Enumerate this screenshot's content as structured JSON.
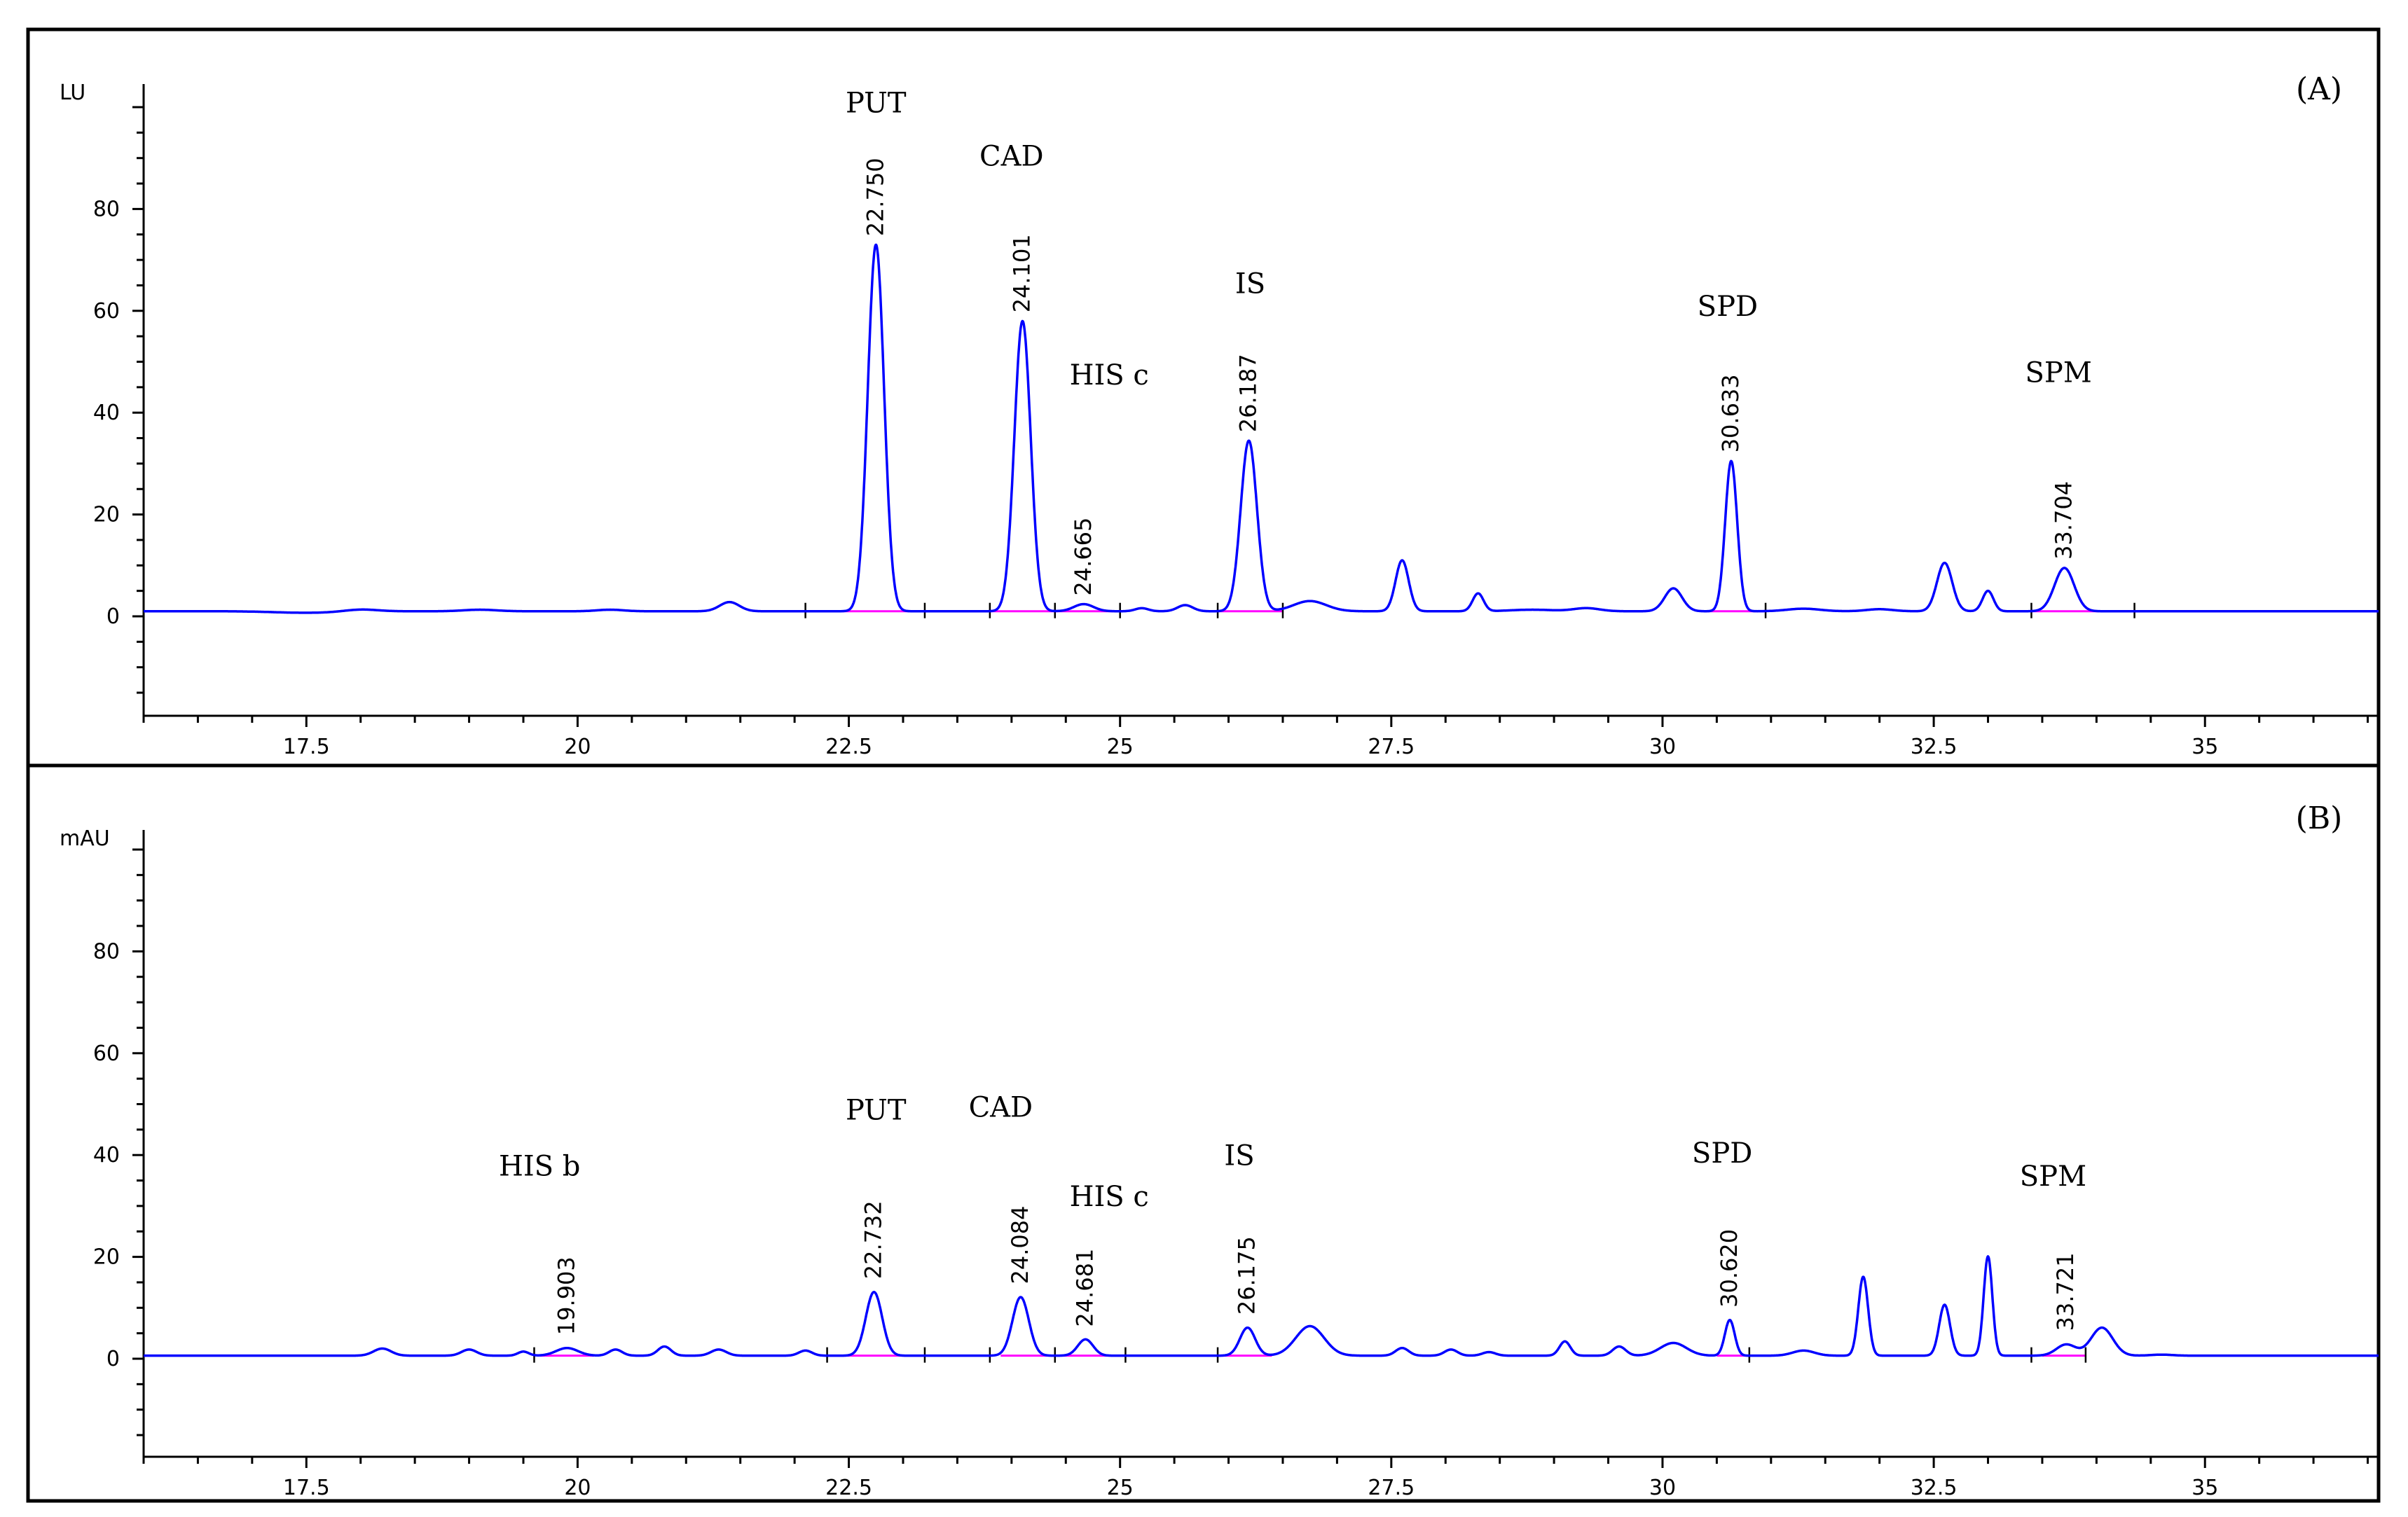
{
  "chart_data": [
    {
      "type": "line",
      "panel_label": "(A)",
      "ylabel": "LU",
      "xlim": [
        16,
        36.6
      ],
      "ylim": [
        -20,
        102
      ],
      "xticks": [
        17.5,
        20,
        22.5,
        25,
        27.5,
        30,
        32.5,
        35
      ],
      "xtick_labels": [
        "17.5",
        "20",
        "22.5",
        "25",
        "27.5",
        "30",
        "32.5",
        "35"
      ],
      "yticks": [
        0,
        20,
        40,
        60,
        80
      ],
      "ytick_labels": [
        "0",
        "20",
        "40",
        "60",
        "80"
      ],
      "baseline": 1.0,
      "peaks": [
        {
          "x": 17.5,
          "h": -0.3,
          "w": 0.3
        },
        {
          "x": 18.0,
          "h": 0.4,
          "w": 0.15
        },
        {
          "x": 19.1,
          "h": 0.3,
          "w": 0.15
        },
        {
          "x": 20.3,
          "h": 0.3,
          "w": 0.12
        },
        {
          "x": 21.4,
          "h": 1.8,
          "w": 0.09
        },
        {
          "x": 22.75,
          "h": 72,
          "w": 0.075
        },
        {
          "x": 24.101,
          "h": 57,
          "w": 0.075
        },
        {
          "x": 24.665,
          "h": 1.4,
          "w": 0.09
        },
        {
          "x": 25.2,
          "h": 0.6,
          "w": 0.06
        },
        {
          "x": 25.6,
          "h": 1.2,
          "w": 0.07
        },
        {
          "x": 26.187,
          "h": 33.5,
          "w": 0.075
        },
        {
          "x": 26.75,
          "h": 2.0,
          "w": 0.15
        },
        {
          "x": 27.6,
          "h": 10,
          "w": 0.06
        },
        {
          "x": 28.3,
          "h": 3.5,
          "w": 0.05
        },
        {
          "x": 28.8,
          "h": 0.3,
          "w": 0.2
        },
        {
          "x": 29.3,
          "h": 0.6,
          "w": 0.12
        },
        {
          "x": 30.1,
          "h": 4.5,
          "w": 0.08
        },
        {
          "x": 30.633,
          "h": 29.5,
          "w": 0.055
        },
        {
          "x": 31.3,
          "h": 0.5,
          "w": 0.15
        },
        {
          "x": 32.0,
          "h": 0.4,
          "w": 0.12
        },
        {
          "x": 32.6,
          "h": 9.5,
          "w": 0.07
        },
        {
          "x": 33.0,
          "h": 4,
          "w": 0.05
        },
        {
          "x": 33.704,
          "h": 8.5,
          "w": 0.09
        }
      ],
      "peak_labels": [
        {
          "x": 22.75,
          "y": 73,
          "text": "22.750"
        },
        {
          "x": 24.101,
          "y": 58,
          "text": "24.101"
        },
        {
          "x": 24.665,
          "y": 2.4,
          "text": "24.665"
        },
        {
          "x": 26.187,
          "y": 34.5,
          "text": "26.187"
        },
        {
          "x": 30.633,
          "y": 30.5,
          "text": "30.633"
        },
        {
          "x": 33.704,
          "y": 9.5,
          "text": "33.704"
        }
      ],
      "compound_labels": [
        {
          "x": 22.75,
          "y": 99,
          "text": "PUT"
        },
        {
          "x": 24.0,
          "y": 88.5,
          "text": "CAD"
        },
        {
          "x": 24.9,
          "y": 45.5,
          "text": "HIS c"
        },
        {
          "x": 26.2,
          "y": 63.5,
          "text": "IS"
        },
        {
          "x": 30.6,
          "y": 59,
          "text": "SPD"
        },
        {
          "x": 33.65,
          "y": 46,
          "text": "SPM"
        }
      ],
      "integration_segments": [
        [
          22.3,
          23.2
        ],
        [
          23.8,
          24.4
        ],
        [
          24.4,
          25.0
        ],
        [
          25.9,
          26.5
        ],
        [
          30.4,
          30.95
        ],
        [
          33.4,
          34.35
        ]
      ],
      "event_markers": [
        22.1,
        23.2,
        23.8,
        24.4,
        25.0,
        25.9,
        26.5,
        30.95,
        33.4,
        34.35
      ]
    },
    {
      "type": "line",
      "panel_label": "(B)",
      "ylabel": "mAU",
      "xlim": [
        16,
        36.6
      ],
      "ylim": [
        -20,
        102
      ],
      "xticks": [
        17.5,
        20,
        22.5,
        25,
        27.5,
        30,
        32.5,
        35
      ],
      "xtick_labels": [
        "17.5",
        "20",
        "22.5",
        "25",
        "27.5",
        "30",
        "32.5",
        "35"
      ],
      "yticks": [
        0,
        20,
        40,
        60,
        80
      ],
      "ytick_labels": [
        "0",
        "20",
        "40",
        "60",
        "80"
      ],
      "baseline": 0.6,
      "peaks": [
        {
          "x": 18.2,
          "h": 1.4,
          "w": 0.08
        },
        {
          "x": 19.0,
          "h": 1.2,
          "w": 0.07
        },
        {
          "x": 19.5,
          "h": 0.8,
          "w": 0.05
        },
        {
          "x": 19.903,
          "h": 1.5,
          "w": 0.1
        },
        {
          "x": 20.35,
          "h": 1.2,
          "w": 0.06
        },
        {
          "x": 20.8,
          "h": 1.8,
          "w": 0.06
        },
        {
          "x": 21.3,
          "h": 1.2,
          "w": 0.07
        },
        {
          "x": 22.1,
          "h": 1.0,
          "w": 0.06
        },
        {
          "x": 22.732,
          "h": 12.5,
          "w": 0.075
        },
        {
          "x": 24.084,
          "h": 11.5,
          "w": 0.075
        },
        {
          "x": 24.681,
          "h": 3.2,
          "w": 0.07
        },
        {
          "x": 26.175,
          "h": 5.5,
          "w": 0.07
        },
        {
          "x": 26.75,
          "h": 5.8,
          "w": 0.13
        },
        {
          "x": 27.6,
          "h": 1.5,
          "w": 0.06
        },
        {
          "x": 28.05,
          "h": 1.2,
          "w": 0.06
        },
        {
          "x": 28.4,
          "h": 0.7,
          "w": 0.06
        },
        {
          "x": 29.1,
          "h": 2.8,
          "w": 0.05
        },
        {
          "x": 29.6,
          "h": 1.8,
          "w": 0.06
        },
        {
          "x": 30.1,
          "h": 2.5,
          "w": 0.12
        },
        {
          "x": 30.62,
          "h": 7,
          "w": 0.045
        },
        {
          "x": 31.3,
          "h": 1.0,
          "w": 0.1
        },
        {
          "x": 31.85,
          "h": 15.5,
          "w": 0.045
        },
        {
          "x": 32.6,
          "h": 10,
          "w": 0.05
        },
        {
          "x": 33.0,
          "h": 19.5,
          "w": 0.04
        },
        {
          "x": 33.721,
          "h": 2.2,
          "w": 0.09
        },
        {
          "x": 34.05,
          "h": 5.5,
          "w": 0.1
        },
        {
          "x": 34.6,
          "h": 0.2,
          "w": 0.1
        }
      ],
      "peak_labels": [
        {
          "x": 19.903,
          "y": 3.0,
          "text": "19.903"
        },
        {
          "x": 22.732,
          "y": 14,
          "text": "22.732"
        },
        {
          "x": 24.084,
          "y": 13,
          "text": "24.084"
        },
        {
          "x": 24.681,
          "y": 4.6,
          "text": "24.681"
        },
        {
          "x": 26.175,
          "y": 7,
          "text": "26.175"
        },
        {
          "x": 30.62,
          "y": 8.4,
          "text": "30.620"
        },
        {
          "x": 33.721,
          "y": 3.8,
          "text": "33.721"
        }
      ],
      "compound_labels": [
        {
          "x": 19.65,
          "y": 36,
          "text": "HIS b"
        },
        {
          "x": 22.75,
          "y": 47,
          "text": "PUT"
        },
        {
          "x": 23.9,
          "y": 47.5,
          "text": "CAD"
        },
        {
          "x": 24.9,
          "y": 30,
          "text": "HIS c"
        },
        {
          "x": 26.1,
          "y": 38,
          "text": "IS"
        },
        {
          "x": 30.55,
          "y": 38.5,
          "text": "SPD"
        },
        {
          "x": 33.6,
          "y": 34,
          "text": "SPM"
        }
      ],
      "integration_segments": [
        [
          19.65,
          20.15
        ],
        [
          22.3,
          23.2
        ],
        [
          23.9,
          24.4
        ],
        [
          24.45,
          25.05
        ],
        [
          25.9,
          26.4
        ],
        [
          30.5,
          30.8
        ],
        [
          33.5,
          33.9
        ]
      ],
      "event_markers": [
        19.6,
        22.3,
        23.2,
        23.8,
        24.4,
        25.05,
        25.9,
        30.8,
        33.4,
        33.9
      ]
    }
  ]
}
